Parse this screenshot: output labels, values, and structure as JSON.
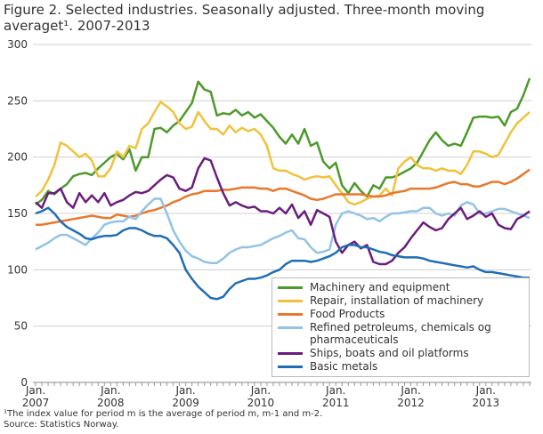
{
  "chart_data": {
    "type": "line",
    "title": "Figure 2. Selected industries. Seasonally adjusted. Three-month moving averaget¹. 2007-2013",
    "footnotes": [
      "¹The index value for period m is the average of period m, m-1 and m-2.",
      "Source: Statistics Norway."
    ],
    "categories": [
      "Jan. 2007",
      null,
      null,
      null,
      null,
      null,
      null,
      null,
      null,
      null,
      null,
      null,
      "Jan. 2008",
      null,
      null,
      null,
      null,
      null,
      null,
      null,
      null,
      null,
      null,
      null,
      "Jan. 2009",
      null,
      null,
      null,
      null,
      null,
      null,
      null,
      null,
      null,
      null,
      null,
      "Jan. 2010",
      null,
      null,
      null,
      null,
      null,
      null,
      null,
      null,
      null,
      null,
      null,
      "Jan. 2011",
      null,
      null,
      null,
      null,
      null,
      null,
      null,
      null,
      null,
      null,
      null,
      "Jan. 2012",
      null,
      null,
      null,
      null,
      null,
      null,
      null,
      null,
      null,
      null,
      null,
      "Jan. 2013",
      null,
      null,
      null,
      null,
      null,
      null,
      null
    ],
    "ylim": [
      0,
      300
    ],
    "yticks": [
      0,
      50,
      100,
      150,
      200,
      250,
      300
    ],
    "grid": true,
    "series": [
      {
        "name": "Machinery and equipment",
        "color": "#4c9a2a",
        "values": [
          158,
          162,
          170,
          167,
          172,
          176,
          183,
          185,
          186,
          184,
          190,
          195,
          200,
          203,
          198,
          207,
          188,
          200,
          200,
          225,
          226,
          222,
          228,
          232,
          240,
          248,
          267,
          260,
          258,
          237,
          239,
          238,
          242,
          237,
          240,
          235,
          238,
          232,
          226,
          218,
          212,
          220,
          212,
          225,
          210,
          213,
          196,
          190,
          195,
          175,
          168,
          177,
          170,
          165,
          175,
          172,
          182,
          182,
          184,
          187,
          190,
          195,
          205,
          215,
          222,
          215,
          210,
          212,
          210,
          222,
          235,
          236,
          236,
          235,
          236,
          228,
          240,
          243,
          255,
          270
        ]
      },
      {
        "name": "Repair, installation of machinery",
        "color": "#f0c23c",
        "values": [
          165,
          170,
          180,
          193,
          213,
          210,
          205,
          200,
          203,
          197,
          183,
          183,
          190,
          205,
          200,
          210,
          208,
          225,
          230,
          240,
          249,
          245,
          240,
          230,
          225,
          227,
          240,
          232,
          225,
          225,
          220,
          228,
          222,
          226,
          223,
          225,
          220,
          210,
          190,
          188,
          188,
          185,
          183,
          180,
          182,
          183,
          182,
          183,
          175,
          168,
          160,
          158,
          160,
          163,
          165,
          166,
          172,
          166,
          190,
          196,
          200,
          193,
          190,
          190,
          188,
          190,
          188,
          188,
          185,
          193,
          205,
          205,
          203,
          200,
          202,
          212,
          222,
          230,
          235,
          240
        ]
      },
      {
        "name": "Food Products",
        "color": "#e8782a",
        "values": [
          140,
          140,
          141,
          142,
          143,
          144,
          145,
          146,
          147,
          148,
          147,
          146,
          146,
          149,
          148,
          147,
          148,
          150,
          152,
          153,
          155,
          157,
          160,
          162,
          165,
          167,
          168,
          170,
          170,
          170,
          171,
          171,
          172,
          173,
          173,
          173,
          172,
          172,
          170,
          172,
          172,
          170,
          168,
          166,
          163,
          162,
          163,
          165,
          167,
          167,
          167,
          167,
          167,
          166,
          165,
          165,
          166,
          168,
          169,
          170,
          172,
          172,
          172,
          172,
          173,
          175,
          177,
          178,
          176,
          176,
          174,
          174,
          176,
          178,
          178,
          176,
          178,
          181,
          185,
          189
        ]
      },
      {
        "name": "Refined petroleums, chemicals og pharmaceuticals",
        "color": "#92c3e6",
        "values": [
          118,
          121,
          124,
          128,
          131,
          131,
          128,
          125,
          122,
          128,
          133,
          140,
          142,
          143,
          143,
          147,
          145,
          152,
          158,
          163,
          163,
          150,
          135,
          125,
          117,
          112,
          110,
          107,
          106,
          106,
          110,
          115,
          118,
          120,
          120,
          121,
          122,
          125,
          128,
          130,
          133,
          135,
          128,
          127,
          120,
          115,
          116,
          118,
          140,
          150,
          152,
          150,
          148,
          145,
          146,
          143,
          147,
          150,
          150,
          151,
          152,
          152,
          155,
          155,
          150,
          148,
          150,
          148,
          157,
          160,
          158,
          150,
          150,
          152,
          154,
          154,
          152,
          150,
          148,
          146
        ]
      },
      {
        "name": "Ships, boats and oil platforms",
        "color": "#6b1d7c",
        "values": [
          160,
          155,
          168,
          168,
          172,
          160,
          155,
          168,
          160,
          166,
          160,
          168,
          157,
          160,
          162,
          166,
          169,
          168,
          170,
          175,
          180,
          184,
          182,
          172,
          170,
          173,
          190,
          199,
          197,
          182,
          168,
          157,
          160,
          157,
          155,
          156,
          152,
          152,
          150,
          155,
          150,
          158,
          146,
          152,
          140,
          153,
          150,
          147,
          125,
          115,
          122,
          125,
          119,
          122,
          107,
          105,
          105,
          108,
          115,
          120,
          128,
          135,
          142,
          138,
          135,
          137,
          145,
          150,
          155,
          145,
          148,
          152,
          147,
          150,
          140,
          137,
          136,
          145,
          148,
          152
        ]
      },
      {
        "name": "Basic metals",
        "color": "#1f6eb4",
        "values": [
          150,
          152,
          155,
          150,
          143,
          138,
          135,
          132,
          128,
          127,
          129,
          130,
          130,
          131,
          135,
          137,
          137,
          135,
          132,
          130,
          130,
          128,
          122,
          115,
          100,
          92,
          85,
          80,
          75,
          74,
          76,
          83,
          88,
          90,
          92,
          92,
          93,
          95,
          98,
          100,
          105,
          108,
          108,
          108,
          107,
          108,
          110,
          112,
          115,
          120,
          122,
          122,
          120,
          120,
          118,
          116,
          115,
          113,
          112,
          111,
          111,
          111,
          110,
          108,
          107,
          106,
          105,
          104,
          103,
          102,
          103,
          100,
          98,
          98,
          97,
          96,
          95,
          94,
          93,
          93
        ]
      }
    ]
  }
}
